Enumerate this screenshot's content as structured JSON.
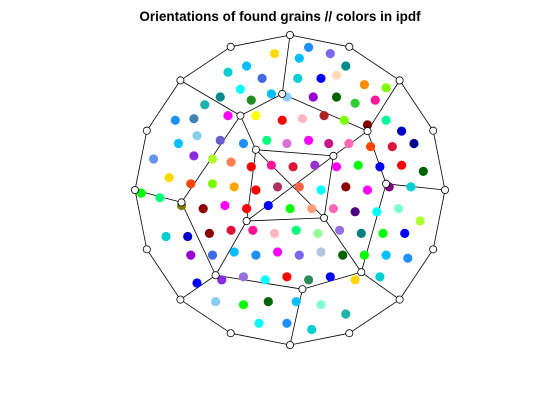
{
  "chart_data": {
    "type": "scatter",
    "title": "Orientations of found grains // colors in ipdf",
    "xlabel": "",
    "ylabel": "",
    "grid": false,
    "axes_visible": false,
    "legend": "none",
    "frame": {
      "line_color": "#000000",
      "vertex_marker": "circle",
      "vertices": [
        [
          0,
          -1
        ],
        [
          0.3827,
          -0.9239
        ],
        [
          0.7071,
          -0.7071
        ],
        [
          0.9239,
          -0.3827
        ],
        [
          1,
          0
        ],
        [
          0.9239,
          0.3827
        ],
        [
          0.7071,
          0.7071
        ],
        [
          0.3827,
          0.9239
        ],
        [
          0,
          1
        ],
        [
          -0.3827,
          0.9239
        ],
        [
          -0.7071,
          0.7071
        ],
        [
          -0.9239,
          0.3827
        ],
        [
          -1,
          0
        ],
        [
          -0.9239,
          -0.3827
        ],
        [
          -0.7071,
          -0.7071
        ],
        [
          -0.3827,
          -0.9239
        ],
        [
          -0.48,
          -0.55
        ],
        [
          0.46,
          -0.53
        ],
        [
          0.5,
          0.38
        ],
        [
          -0.32,
          0.48
        ],
        [
          -0.7,
          -0.08
        ],
        [
          0.62,
          0.04
        ],
        [
          -0.05,
          0.62
        ],
        [
          0.08,
          -0.64
        ],
        [
          -0.28,
          -0.2
        ],
        [
          0.22,
          -0.18
        ],
        [
          0.28,
          0.22
        ],
        [
          -0.22,
          0.26
        ]
      ],
      "edges": [
        [
          0,
          1
        ],
        [
          1,
          2
        ],
        [
          2,
          3
        ],
        [
          3,
          4
        ],
        [
          4,
          5
        ],
        [
          5,
          6
        ],
        [
          6,
          7
        ],
        [
          7,
          8
        ],
        [
          8,
          9
        ],
        [
          9,
          10
        ],
        [
          10,
          11
        ],
        [
          11,
          12
        ],
        [
          12,
          13
        ],
        [
          13,
          14
        ],
        [
          14,
          15
        ],
        [
          15,
          0
        ],
        [
          0,
          23
        ],
        [
          23,
          16
        ],
        [
          23,
          17
        ],
        [
          16,
          14
        ],
        [
          17,
          2
        ],
        [
          16,
          20
        ],
        [
          20,
          12
        ],
        [
          20,
          19
        ],
        [
          17,
          21
        ],
        [
          21,
          4
        ],
        [
          21,
          18
        ],
        [
          18,
          6
        ],
        [
          18,
          22
        ],
        [
          22,
          8
        ],
        [
          22,
          19
        ],
        [
          19,
          10
        ],
        [
          16,
          24
        ],
        [
          17,
          25
        ],
        [
          18,
          26
        ],
        [
          19,
          27
        ],
        [
          24,
          25
        ],
        [
          25,
          26
        ],
        [
          26,
          27
        ],
        [
          27,
          24
        ],
        [
          24,
          26
        ],
        [
          25,
          27
        ]
      ]
    },
    "points": [
      {
        "x": 0.12,
        "y": 0.92,
        "color": "#1e90ff"
      },
      {
        "x": 0.26,
        "y": 0.88,
        "color": "#7b68ee"
      },
      {
        "x": 0.36,
        "y": 0.8,
        "color": "#008b8b"
      },
      {
        "x": 0.06,
        "y": 0.85,
        "color": "#00bfff"
      },
      {
        "x": -0.1,
        "y": 0.88,
        "color": "#ffd700"
      },
      {
        "x": 0.48,
        "y": 0.68,
        "color": "#ff8c00"
      },
      {
        "x": 0.2,
        "y": 0.72,
        "color": "#0000ff"
      },
      {
        "x": 0.05,
        "y": 0.72,
        "color": "#00ced1"
      },
      {
        "x": -0.18,
        "y": 0.72,
        "color": "#4169e1"
      },
      {
        "x": -0.32,
        "y": 0.65,
        "color": "#00ffff"
      },
      {
        "x": 0.55,
        "y": 0.58,
        "color": "#ff1493"
      },
      {
        "x": 0.42,
        "y": 0.56,
        "color": "#32cd32"
      },
      {
        "x": 0.3,
        "y": 0.6,
        "color": "#006400"
      },
      {
        "x": 0.15,
        "y": 0.6,
        "color": "#9400d3"
      },
      {
        "x": -0.02,
        "y": 0.6,
        "color": "#87cefa"
      },
      {
        "x": -0.12,
        "y": 0.62,
        "color": "#00bfff"
      },
      {
        "x": -0.25,
        "y": 0.58,
        "color": "#228b22"
      },
      {
        "x": -0.45,
        "y": 0.6,
        "color": "#008b8b"
      },
      {
        "x": -0.55,
        "y": 0.55,
        "color": "#20b2aa"
      },
      {
        "x": -0.4,
        "y": 0.48,
        "color": "#ff00ff"
      },
      {
        "x": -0.22,
        "y": 0.48,
        "color": "#ffff00"
      },
      {
        "x": -0.05,
        "y": 0.45,
        "color": "#ff0000"
      },
      {
        "x": 0.08,
        "y": 0.46,
        "color": "#ffb6c1"
      },
      {
        "x": 0.22,
        "y": 0.48,
        "color": "#b22222"
      },
      {
        "x": 0.35,
        "y": 0.45,
        "color": "#7fff00"
      },
      {
        "x": 0.5,
        "y": 0.42,
        "color": "#800000"
      },
      {
        "x": 0.62,
        "y": 0.45,
        "color": "#00fa9a"
      },
      {
        "x": 0.72,
        "y": 0.38,
        "color": "#0000cd"
      },
      {
        "x": 0.8,
        "y": 0.3,
        "color": "#00008b"
      },
      {
        "x": 0.66,
        "y": 0.28,
        "color": "#dc143c"
      },
      {
        "x": 0.52,
        "y": 0.28,
        "color": "#ff4500"
      },
      {
        "x": 0.38,
        "y": 0.3,
        "color": "#ff69b4"
      },
      {
        "x": 0.25,
        "y": 0.3,
        "color": "#c71585"
      },
      {
        "x": 0.12,
        "y": 0.32,
        "color": "#ff00ff"
      },
      {
        "x": -0.02,
        "y": 0.3,
        "color": "#da70d6"
      },
      {
        "x": -0.15,
        "y": 0.32,
        "color": "#00ff7f"
      },
      {
        "x": -0.3,
        "y": 0.3,
        "color": "#1e90ff"
      },
      {
        "x": -0.45,
        "y": 0.32,
        "color": "#6a5acd"
      },
      {
        "x": -0.6,
        "y": 0.35,
        "color": "#87ceeb"
      },
      {
        "x": -0.72,
        "y": 0.3,
        "color": "#00bfff"
      },
      {
        "x": -0.62,
        "y": 0.22,
        "color": "#8a2be2"
      },
      {
        "x": -0.5,
        "y": 0.2,
        "color": "#adff2f"
      },
      {
        "x": -0.38,
        "y": 0.18,
        "color": "#ff7f50"
      },
      {
        "x": -0.25,
        "y": 0.15,
        "color": "#ff0000"
      },
      {
        "x": -0.12,
        "y": 0.16,
        "color": "#ff1493"
      },
      {
        "x": 0.02,
        "y": 0.15,
        "color": "#dc143c"
      },
      {
        "x": 0.16,
        "y": 0.16,
        "color": "#9932cc"
      },
      {
        "x": 0.3,
        "y": 0.15,
        "color": "#ff00ff"
      },
      {
        "x": 0.44,
        "y": 0.16,
        "color": "#00ff00"
      },
      {
        "x": 0.58,
        "y": 0.15,
        "color": "#0000ff"
      },
      {
        "x": 0.72,
        "y": 0.16,
        "color": "#ff0000"
      },
      {
        "x": 0.86,
        "y": 0.12,
        "color": "#006400"
      },
      {
        "x": 0.78,
        "y": 0.02,
        "color": "#00ced1"
      },
      {
        "x": 0.64,
        "y": 0.02,
        "color": "#800080"
      },
      {
        "x": 0.5,
        "y": 0.0,
        "color": "#ff00ff"
      },
      {
        "x": 0.36,
        "y": 0.02,
        "color": "#8b0000"
      },
      {
        "x": 0.2,
        "y": 0.0,
        "color": "#00ffff"
      },
      {
        "x": 0.06,
        "y": 0.02,
        "color": "#ff6347"
      },
      {
        "x": -0.08,
        "y": 0.02,
        "color": "#b03060"
      },
      {
        "x": -0.22,
        "y": 0.0,
        "color": "#ff0000"
      },
      {
        "x": -0.36,
        "y": 0.02,
        "color": "#ffa500"
      },
      {
        "x": -0.5,
        "y": 0.04,
        "color": "#7cfc00"
      },
      {
        "x": -0.64,
        "y": 0.04,
        "color": "#ff4500"
      },
      {
        "x": -0.78,
        "y": 0.08,
        "color": "#ffd700"
      },
      {
        "x": -0.88,
        "y": 0.2,
        "color": "#6495ed"
      },
      {
        "x": -0.96,
        "y": -0.02,
        "color": "#00ff00"
      },
      {
        "x": -0.84,
        "y": -0.05,
        "color": "#00ff7f"
      },
      {
        "x": -0.7,
        "y": -0.1,
        "color": "#808000"
      },
      {
        "x": -0.56,
        "y": -0.12,
        "color": "#8b0000"
      },
      {
        "x": -0.42,
        "y": -0.1,
        "color": "#ff00ff"
      },
      {
        "x": -0.28,
        "y": -0.12,
        "color": "#ff0000"
      },
      {
        "x": -0.14,
        "y": -0.1,
        "color": "#0000ff"
      },
      {
        "x": 0.0,
        "y": -0.12,
        "color": "#00ff00"
      },
      {
        "x": 0.14,
        "y": -0.12,
        "color": "#ffa07a"
      },
      {
        "x": 0.28,
        "y": -0.12,
        "color": "#ff69b4"
      },
      {
        "x": 0.42,
        "y": -0.14,
        "color": "#4b0082"
      },
      {
        "x": 0.56,
        "y": -0.14,
        "color": "#00ffff"
      },
      {
        "x": 0.7,
        "y": -0.12,
        "color": "#7fffd4"
      },
      {
        "x": 0.84,
        "y": -0.2,
        "color": "#adff2f"
      },
      {
        "x": 0.74,
        "y": -0.28,
        "color": "#0000ff"
      },
      {
        "x": 0.6,
        "y": -0.28,
        "color": "#00ff00"
      },
      {
        "x": 0.46,
        "y": -0.28,
        "color": "#008080"
      },
      {
        "x": 0.32,
        "y": -0.26,
        "color": "#9370db"
      },
      {
        "x": 0.18,
        "y": -0.28,
        "color": "#98fb98"
      },
      {
        "x": 0.04,
        "y": -0.26,
        "color": "#00ff7f"
      },
      {
        "x": -0.1,
        "y": -0.28,
        "color": "#ffb6c1"
      },
      {
        "x": -0.24,
        "y": -0.26,
        "color": "#ff1493"
      },
      {
        "x": -0.38,
        "y": -0.26,
        "color": "#dc143c"
      },
      {
        "x": -0.52,
        "y": -0.28,
        "color": "#8b0000"
      },
      {
        "x": -0.66,
        "y": -0.3,
        "color": "#0000cd"
      },
      {
        "x": -0.8,
        "y": -0.3,
        "color": "#00ced1"
      },
      {
        "x": -0.64,
        "y": -0.42,
        "color": "#9400d3"
      },
      {
        "x": -0.5,
        "y": -0.42,
        "color": "#4169e1"
      },
      {
        "x": -0.36,
        "y": -0.4,
        "color": "#00bfff"
      },
      {
        "x": -0.22,
        "y": -0.42,
        "color": "#1e90ff"
      },
      {
        "x": -0.08,
        "y": -0.4,
        "color": "#ff00ff"
      },
      {
        "x": 0.06,
        "y": -0.42,
        "color": "#7b68ee"
      },
      {
        "x": 0.2,
        "y": -0.4,
        "color": "#b0c4de"
      },
      {
        "x": 0.34,
        "y": -0.42,
        "color": "#006400"
      },
      {
        "x": 0.48,
        "y": -0.42,
        "color": "#00ff00"
      },
      {
        "x": 0.62,
        "y": -0.42,
        "color": "#00bfff"
      },
      {
        "x": 0.76,
        "y": -0.44,
        "color": "#1e90ff"
      },
      {
        "x": 0.58,
        "y": -0.56,
        "color": "#00ced1"
      },
      {
        "x": 0.42,
        "y": -0.58,
        "color": "#ffd700"
      },
      {
        "x": 0.26,
        "y": -0.56,
        "color": "#0000ff"
      },
      {
        "x": 0.12,
        "y": -0.58,
        "color": "#2e8b57"
      },
      {
        "x": -0.02,
        "y": -0.56,
        "color": "#ff0000"
      },
      {
        "x": -0.16,
        "y": -0.58,
        "color": "#00ffff"
      },
      {
        "x": -0.3,
        "y": -0.56,
        "color": "#9370db"
      },
      {
        "x": -0.44,
        "y": -0.58,
        "color": "#8a2be2"
      },
      {
        "x": -0.6,
        "y": -0.6,
        "color": "#0000ff"
      },
      {
        "x": -0.48,
        "y": -0.72,
        "color": "#87cefa"
      },
      {
        "x": -0.3,
        "y": -0.74,
        "color": "#00ff00"
      },
      {
        "x": -0.14,
        "y": -0.72,
        "color": "#006400"
      },
      {
        "x": 0.04,
        "y": -0.72,
        "color": "#00bfff"
      },
      {
        "x": 0.2,
        "y": -0.74,
        "color": "#7fffd4"
      },
      {
        "x": 0.36,
        "y": -0.8,
        "color": "#20b2aa"
      },
      {
        "x": -0.2,
        "y": -0.86,
        "color": "#00ffff"
      },
      {
        "x": -0.02,
        "y": -0.86,
        "color": "#1e90ff"
      },
      {
        "x": 0.14,
        "y": -0.9,
        "color": "#00ced1"
      },
      {
        "x": -0.62,
        "y": 0.46,
        "color": "#4682b4"
      },
      {
        "x": -0.74,
        "y": 0.45,
        "color": "#1e90ff"
      },
      {
        "x": -0.4,
        "y": 0.76,
        "color": "#00ced1"
      },
      {
        "x": -0.28,
        "y": 0.8,
        "color": "#00bfff"
      },
      {
        "x": 0.3,
        "y": 0.74,
        "color": "#ffdab9"
      },
      {
        "x": 0.62,
        "y": 0.66,
        "color": "#7fff00"
      }
    ]
  }
}
